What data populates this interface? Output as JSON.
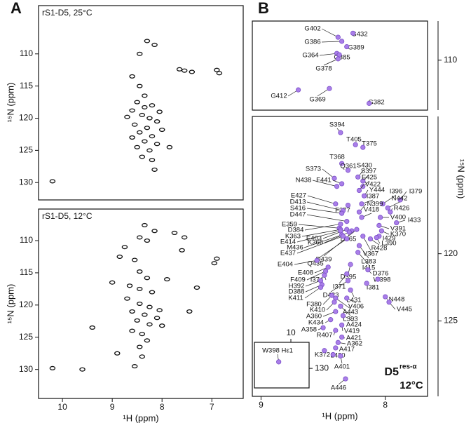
{
  "chart_data": [
    {
      "type": "scatter",
      "panel_label": "A",
      "title": "rS1-D5, 25°C",
      "ylabel": "¹⁵N (ppm)",
      "xlim": [
        6.37,
        10.48
      ],
      "ylim": [
        102.5,
        132.7
      ],
      "yticks": [
        110,
        115,
        120,
        125,
        130
      ],
      "invert_x": true,
      "invert_y": true,
      "yaxis_side": "left",
      "marker": "contour",
      "color": "#111111",
      "x": [
        8.3,
        8.15,
        8.45,
        7.65,
        7.55,
        7.4,
        6.9,
        6.85,
        8.6,
        8.45,
        8.35,
        8.5,
        8.2,
        8.6,
        8.4,
        8.25,
        8.1,
        8.55,
        8.3,
        8.0,
        8.45,
        8.2,
        8.6,
        8.35,
        8.1,
        8.5,
        8.25,
        7.85,
        8.4,
        8.2,
        8.15,
        10.2,
        8.7,
        8.05,
        8.35
      ],
      "y": [
        108.0,
        108.6,
        110.0,
        112.4,
        112.6,
        112.8,
        112.5,
        113.0,
        113.5,
        115.0,
        116.5,
        117.5,
        118.0,
        118.8,
        119.5,
        120.0,
        120.5,
        121.0,
        121.5,
        121.8,
        122.2,
        122.8,
        123.0,
        123.6,
        124.0,
        124.5,
        125.0,
        124.5,
        126.0,
        126.5,
        128.0,
        129.8,
        119.8,
        119.0,
        118.3
      ]
    },
    {
      "type": "scatter",
      "title": "rS1-D5, 12°C",
      "xlabel": "¹H (ppm)",
      "ylabel": "¹⁵N (ppm)",
      "xlim": [
        6.37,
        10.48
      ],
      "ylim": [
        105.1,
        134.5
      ],
      "xticks": [
        10,
        9,
        8,
        7
      ],
      "yticks": [
        110,
        115,
        120,
        125,
        130
      ],
      "invert_x": true,
      "invert_y": true,
      "yaxis_side": "left",
      "marker": "contour",
      "color": "#111111",
      "x": [
        8.35,
        8.15,
        8.45,
        8.3,
        7.75,
        7.55,
        8.75,
        7.6,
        6.9,
        6.95,
        8.85,
        8.55,
        8.45,
        8.3,
        8.65,
        8.45,
        8.2,
        8.7,
        8.45,
        8.25,
        8.05,
        8.6,
        8.35,
        8.1,
        8.5,
        8.25,
        8.0,
        8.6,
        8.4,
        8.3,
        8.45,
        8.4,
        8.55,
        10.2,
        9.4,
        9.0,
        7.9,
        7.45,
        7.3,
        9.6,
        8.9
      ],
      "y": [
        107.6,
        108.5,
        109.5,
        110.0,
        108.8,
        109.5,
        111.0,
        111.5,
        112.8,
        113.5,
        112.5,
        113.0,
        114.8,
        115.8,
        117.0,
        117.5,
        118.0,
        119.0,
        119.8,
        120.3,
        120.8,
        121.0,
        121.5,
        122.0,
        122.4,
        123.0,
        123.2,
        124.0,
        124.5,
        125.5,
        126.5,
        128.0,
        129.5,
        129.8,
        123.5,
        116.5,
        116.0,
        121.0,
        117.3,
        130.0,
        127.5
      ]
    },
    {
      "type": "scatter",
      "panel_label": "B",
      "xlim": [
        7.66,
        9.07
      ],
      "ylim": [
        107.1,
        113.7
      ],
      "yticks": [
        110
      ],
      "invert_x": true,
      "invert_y": true,
      "yaxis_side": "right",
      "marker": "dot",
      "color": "#a97ee8",
      "labels": [
        "G402",
        "G432",
        "G386",
        "G389",
        "G364",
        "G385",
        "G378",
        "G412",
        "G369",
        "G382"
      ],
      "x": [
        8.38,
        8.26,
        8.35,
        8.31,
        8.39,
        8.37,
        8.38,
        8.7,
        8.45,
        8.13
      ],
      "y": [
        108.3,
        108.0,
        108.6,
        109.0,
        109.5,
        109.6,
        109.9,
        112.2,
        112.1,
        113.2
      ]
    },
    {
      "type": "scatter",
      "xlabel": "¹H (ppm)",
      "ylabel": "¹⁵N (ppm)",
      "annotation": {
        "text": "D5",
        "superscript": "res-α",
        "subtext": "12°C"
      },
      "xlim": [
        7.66,
        9.07
      ],
      "ylim": [
        109.8,
        130.6
      ],
      "xticks": [
        9,
        8
      ],
      "yticks": [
        120,
        125
      ],
      "invert_x": true,
      "invert_y": true,
      "yaxis_side": "right",
      "marker": "dot",
      "color": "#a97ee8",
      "labels": [
        "S394",
        "T405",
        "T375",
        "T368",
        "Q361",
        "S373",
        "S430",
        "S397",
        "E425",
        "N438",
        "F441",
        "V422",
        "Y444",
        "I396",
        "I379",
        "E427",
        "F377",
        "I387",
        "N442",
        "D413",
        "N399",
        "R426",
        "S416",
        "V418",
        "D447",
        "V400",
        "I433",
        "E359",
        "D384",
        "V391",
        "K363",
        "K370",
        "E403",
        "D365",
        "E414",
        "I429",
        "K366",
        "L390",
        "M436",
        "R428",
        "E437",
        "V367",
        "D439",
        "Q435",
        "E404",
        "L383",
        "I415",
        "E408",
        "D376",
        "D395",
        "F409",
        "I374",
        "W398",
        "H392",
        "I371",
        "I381",
        "D388",
        "K411",
        "D423",
        "A443",
        "L431",
        "N448",
        "V406",
        "V445",
        "F380",
        "K410",
        "L393",
        "A360",
        "A424",
        "K434",
        "V419",
        "A358",
        "A421",
        "R407",
        "A362",
        "A417",
        "K372",
        "L420",
        "A401",
        "A446"
      ],
      "x": [
        8.36,
        8.24,
        8.18,
        8.35,
        8.3,
        8.41,
        8.22,
        8.18,
        8.18,
        8.39,
        8.35,
        8.21,
        8.17,
        8.02,
        7.88,
        8.4,
        8.3,
        8.19,
        7.98,
        8.34,
        8.21,
        7.96,
        8.35,
        8.19,
        8.31,
        8.04,
        7.91,
        8.37,
        8.36,
        8.05,
        8.36,
        8.03,
        8.31,
        8.27,
        8.36,
        8.05,
        8.29,
        8.07,
        8.35,
        8.12,
        8.34,
        8.18,
        8.23,
        8.31,
        8.55,
        8.21,
        8.22,
        8.46,
        8.14,
        8.28,
        8.48,
        8.49,
        8.06,
        8.52,
        8.31,
        8.15,
        8.51,
        8.52,
        8.3,
        8.4,
        8.28,
        8.0,
        8.31,
        7.97,
        8.43,
        8.41,
        8.36,
        8.4,
        8.34,
        8.44,
        8.35,
        8.5,
        8.35,
        8.4,
        8.38,
        8.4,
        8.49,
        8.42,
        8.36,
        8.32
      ],
      "y": [
        111.0,
        111.9,
        112.1,
        113.3,
        113.8,
        114.4,
        114.3,
        114.6,
        115.0,
        115.0,
        114.8,
        115.3,
        115.7,
        116.3,
        116.0,
        116.3,
        116.4,
        116.3,
        116.6,
        116.8,
        116.9,
        116.9,
        117.0,
        117.3,
        117.6,
        117.3,
        117.7,
        118.1,
        117.8,
        117.9,
        118.2,
        118.3,
        118.2,
        118.3,
        118.3,
        118.7,
        118.4,
        118.8,
        118.6,
        118.9,
        118.7,
        118.7,
        118.2,
        118.9,
        120.5,
        119.4,
        119.9,
        121.0,
        121.2,
        120.8,
        121.3,
        121.6,
        121.9,
        122.0,
        121.5,
        122.2,
        122.3,
        122.5,
        122.0,
        123.3,
        122.7,
        123.2,
        123.3,
        123.6,
        123.1,
        123.6,
        123.9,
        124.3,
        124.6,
        124.9,
        125.3,
        125.5,
        126.2,
        125.7,
        126.6,
        127.0,
        127.2,
        127.5,
        127.6,
        129.3
      ]
    },
    {
      "type": "scatter",
      "xlim": [
        9.7,
        10.6
      ],
      "ylim": [
        128,
        131.5
      ],
      "xticks": [
        10
      ],
      "yticks": [
        130
      ],
      "invert_x": true,
      "invert_y": true,
      "yaxis_side": "right",
      "xaxis_side": "top",
      "marker": "dot",
      "color": "#a97ee8",
      "labels": [
        "W398 Hε1"
      ],
      "x": [
        10.2
      ],
      "y": [
        129.5
      ]
    }
  ]
}
